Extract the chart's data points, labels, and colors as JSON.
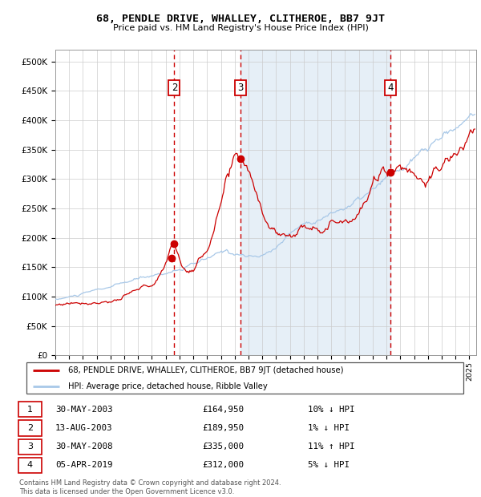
{
  "title": "68, PENDLE DRIVE, WHALLEY, CLITHEROE, BB7 9JT",
  "subtitle": "Price paid vs. HM Land Registry's House Price Index (HPI)",
  "hpi_color": "#a8c8e8",
  "price_color": "#cc0000",
  "bg_color": "#dce9f5",
  "plot_bg": "#ffffff",
  "grid_color": "#cccccc",
  "transactions": [
    {
      "num": 1,
      "date_x": 2003.41,
      "price": 164950
    },
    {
      "num": 2,
      "date_x": 2003.62,
      "price": 189950
    },
    {
      "num": 3,
      "date_x": 2008.41,
      "price": 335000
    },
    {
      "num": 4,
      "date_x": 2019.27,
      "price": 312000
    }
  ],
  "vline_dates": [
    2003.62,
    2008.41,
    2019.27
  ],
  "shade_start": 2008.41,
  "shade_end": 2019.27,
  "xmin": 1995.0,
  "xmax": 2025.5,
  "ymin": 0,
  "ymax": 520000,
  "yticks": [
    0,
    50000,
    100000,
    150000,
    200000,
    250000,
    300000,
    350000,
    400000,
    450000,
    500000
  ],
  "legend_line1": "68, PENDLE DRIVE, WHALLEY, CLITHEROE, BB7 9JT (detached house)",
  "legend_line2": "HPI: Average price, detached house, Ribble Valley",
  "footnote": "Contains HM Land Registry data © Crown copyright and database right 2024.\nThis data is licensed under the Open Government Licence v3.0.",
  "label_rows": [
    [
      "1",
      "30-MAY-2003",
      "£164,950",
      "10% ↓ HPI"
    ],
    [
      "2",
      "13-AUG-2003",
      "£189,950",
      "1% ↓ HPI"
    ],
    [
      "3",
      "30-MAY-2008",
      "£335,000",
      "11% ↑ HPI"
    ],
    [
      "4",
      "05-APR-2019",
      "£312,000",
      "5% ↓ HPI"
    ]
  ]
}
